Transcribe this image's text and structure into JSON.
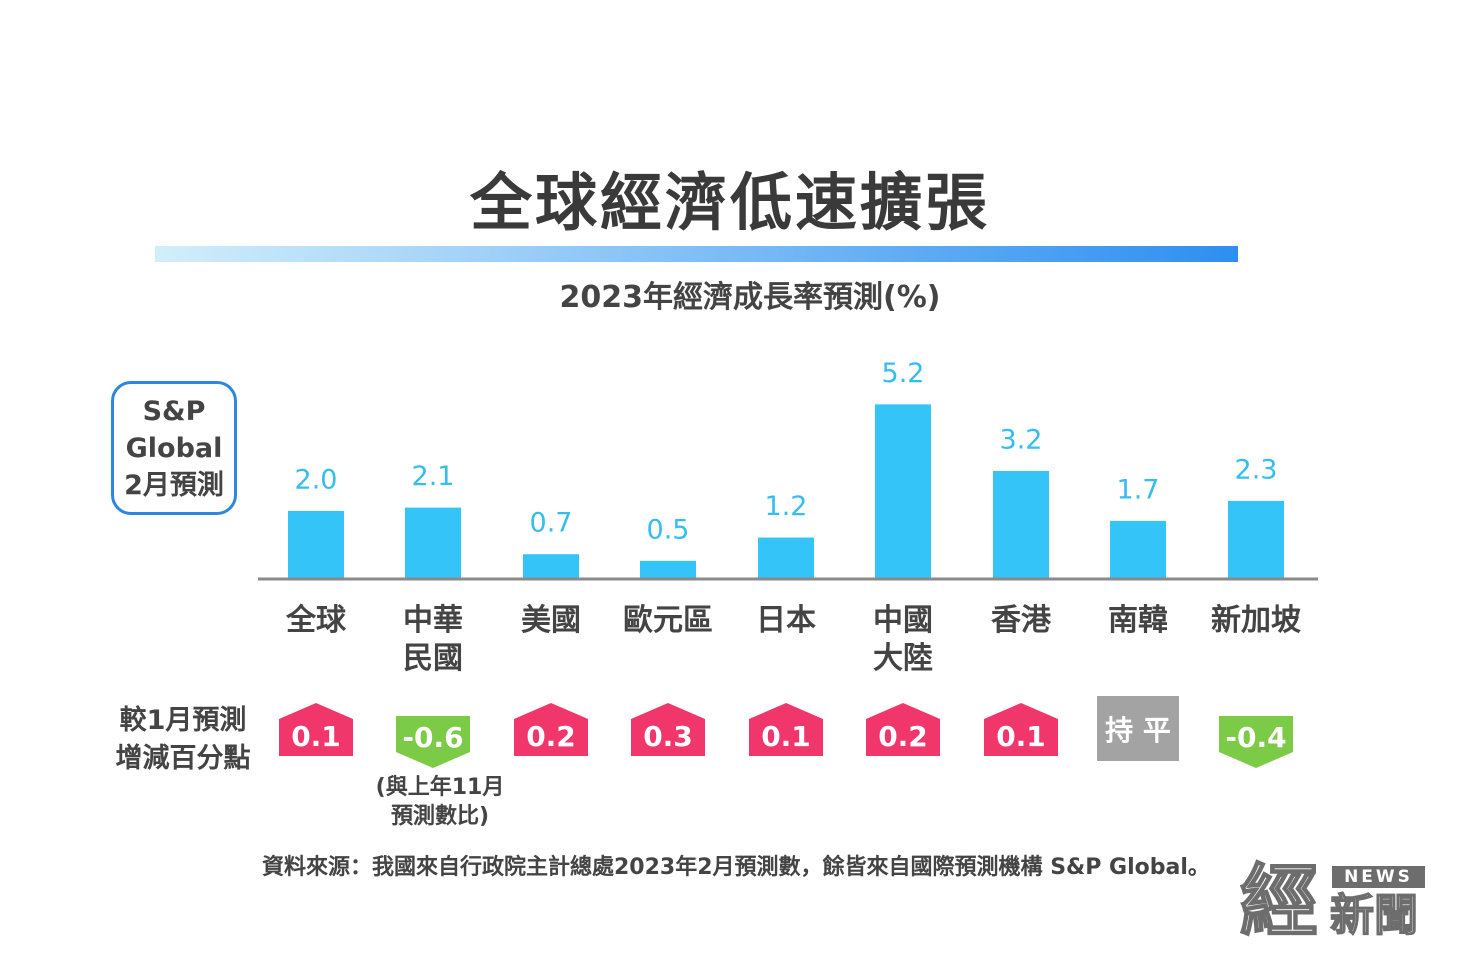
{
  "title": "全球經濟低速擴張",
  "subtitle": "2023年經濟成長率預測(%)",
  "source_box": {
    "line1": "S&P",
    "line2": "Global",
    "line3": "2月預測"
  },
  "row_label": {
    "line1": "較1月預測",
    "line2": "增減百分點"
  },
  "note": {
    "line1": "(與上年11月",
    "line2": "預測數比)"
  },
  "source_text": "資料來源：我國來自行政院主計總處2023年2月預測數，餘皆來自國際預測機構 S&P Global。",
  "watermark": {
    "big": "經",
    "news": "NEWS",
    "small": "新聞"
  },
  "colors": {
    "bar": "#35c4f7",
    "up": "#f0366b",
    "down": "#7ccb46",
    "flat": "#a3a3a3",
    "value_label": "#35bdee",
    "axis": "#8a8a8a"
  },
  "chart_data": {
    "type": "bar",
    "categories": [
      "全球",
      "中華民國",
      "美國",
      "歐元區",
      "日本",
      "中國大陸",
      "香港",
      "南韓",
      "新加坡"
    ],
    "category_lines": [
      [
        "全球"
      ],
      [
        "中華",
        "民國"
      ],
      [
        "美國"
      ],
      [
        "歐元區"
      ],
      [
        "日本"
      ],
      [
        "中國",
        "大陸"
      ],
      [
        "香港"
      ],
      [
        "南韓"
      ],
      [
        "新加坡"
      ]
    ],
    "values": [
      2.0,
      2.1,
      0.7,
      0.5,
      1.2,
      5.2,
      3.2,
      1.7,
      2.3
    ],
    "value_labels": [
      "2.0",
      "2.1",
      "0.7",
      "0.5",
      "1.2",
      "5.2",
      "3.2",
      "1.7",
      "2.3"
    ],
    "changes": [
      {
        "label": "0.1",
        "dir": "up"
      },
      {
        "label": "-0.6",
        "dir": "down"
      },
      {
        "label": "0.2",
        "dir": "up"
      },
      {
        "label": "0.3",
        "dir": "up"
      },
      {
        "label": "0.1",
        "dir": "up"
      },
      {
        "label": "0.2",
        "dir": "up"
      },
      {
        "label": "0.1",
        "dir": "up"
      },
      {
        "label": "持 平",
        "dir": "flat"
      },
      {
        "label": "-0.4",
        "dir": "down"
      }
    ],
    "ylim": [
      0,
      6
    ]
  }
}
